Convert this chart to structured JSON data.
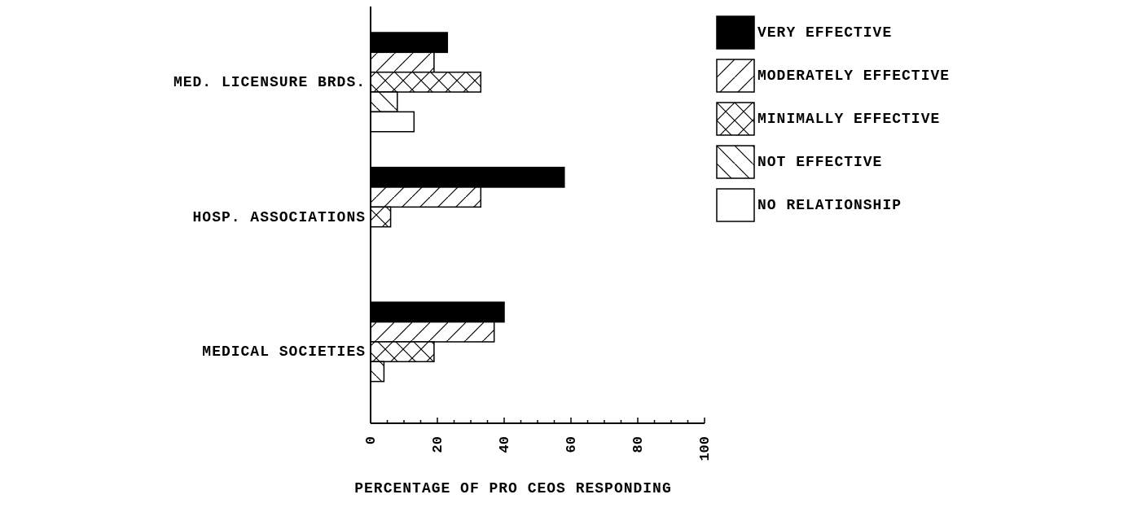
{
  "chart_data": {
    "type": "bar",
    "orientation": "horizontal",
    "xlabel": "PERCENTAGE OF PRO CEOS RESPONDING",
    "categories": [
      "MED. LICENSURE BRDS.",
      "HOSP. ASSOCIATIONS",
      "MEDICAL SOCIETIES"
    ],
    "series": [
      {
        "name": "VERY EFFECTIVE",
        "color": "#000000",
        "values": [
          23,
          58,
          40
        ]
      },
      {
        "name": "MODERATELY EFFECTIVE",
        "color": "#ffffff",
        "values": [
          19,
          33,
          37
        ]
      },
      {
        "name": "MINIMALLY EFFECTIVE",
        "color": "#ffffff",
        "values": [
          33,
          6,
          19
        ]
      },
      {
        "name": "NOT EFFECTIVE",
        "color": "#ffffff",
        "values": [
          8,
          0,
          4
        ]
      },
      {
        "name": "NO RELATIONSHIP",
        "color": "#ffffff",
        "values": [
          13,
          0,
          0
        ]
      }
    ],
    "xlim": [
      0,
      100
    ],
    "xticks": [
      0,
      {
        "value": 5,
        "label": null
      },
      20,
      {
        "value": 10,
        "label": null
      },
      {
        "value": 15,
        "label": null
      },
      {
        "value": 25,
        "label": null
      },
      {
        "value": 30,
        "label": null
      },
      {
        "value": 35,
        "label": null
      },
      40,
      {
        "value": 45,
        "label": null
      },
      {
        "value": 50,
        "label": null
      },
      {
        "value": 55,
        "label": null
      },
      60,
      {
        "value": 65,
        "label": null
      },
      {
        "value": 70,
        "label": null
      },
      {
        "value": 75,
        "label": null
      },
      80,
      {
        "value": 85,
        "label": null
      },
      {
        "value": 90,
        "label": null
      },
      {
        "value": 95,
        "label": null
      },
      100
    ],
    "legend": "top right",
    "grid": false
  }
}
